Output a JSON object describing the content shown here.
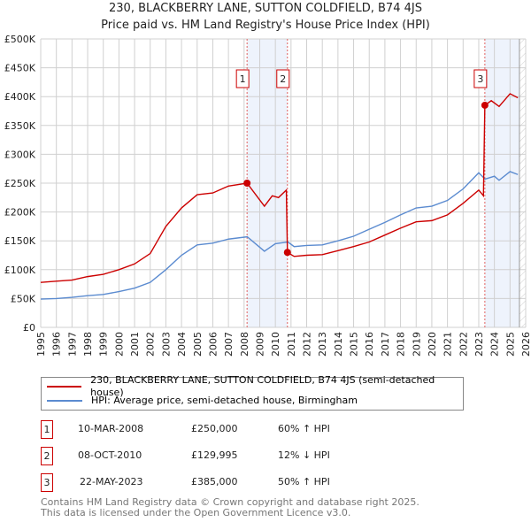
{
  "chart_data": {
    "type": "line",
    "title": "230, BLACKBERRY LANE, SUTTON COLDFIELD, B74 4JS",
    "subtitle": "Price paid vs. HM Land Registry's House Price Index (HPI)",
    "xlim": [
      1995,
      2026
    ],
    "ylim": [
      0,
      500000
    ],
    "x_ticks": [
      "1995",
      "1996",
      "1997",
      "1998",
      "1999",
      "2000",
      "2001",
      "2002",
      "2003",
      "2004",
      "2005",
      "2006",
      "2007",
      "2008",
      "2009",
      "2010",
      "2011",
      "2012",
      "2013",
      "2014",
      "2015",
      "2016",
      "2017",
      "2018",
      "2019",
      "2020",
      "2021",
      "2022",
      "2023",
      "2024",
      "2025",
      "2026"
    ],
    "y_ticks": [
      {
        "v": 0,
        "label": "£0"
      },
      {
        "v": 50000,
        "label": "£50K"
      },
      {
        "v": 100000,
        "label": "£100K"
      },
      {
        "v": 150000,
        "label": "£150K"
      },
      {
        "v": 200000,
        "label": "£200K"
      },
      {
        "v": 250000,
        "label": "£250K"
      },
      {
        "v": 300000,
        "label": "£300K"
      },
      {
        "v": 350000,
        "label": "£350K"
      },
      {
        "v": 400000,
        "label": "£400K"
      },
      {
        "v": 450000,
        "label": "£450K"
      },
      {
        "v": 500000,
        "label": "£500K"
      }
    ],
    "grid": true,
    "series": [
      {
        "name": "230, BLACKBERRY LANE, SUTTON COLDFIELD, B74 4JS (semi-detached house)",
        "color": "#cc0000",
        "x": [
          1995,
          1996,
          1997,
          1998,
          1999,
          2000,
          2001,
          2002,
          2003,
          2004,
          2005,
          2006,
          2007,
          2008.19,
          2009.3,
          2009.8,
          2010.2,
          2010.7,
          2010.77,
          2011.2,
          2012,
          2013,
          2014,
          2015,
          2016,
          2017,
          2018,
          2019,
          2020,
          2021,
          2022,
          2023,
          2023.3,
          2023.39,
          2023.8,
          2024.3,
          2025,
          2025.5
        ],
        "y": [
          78000,
          80000,
          82000,
          88000,
          92000,
          100000,
          110000,
          128000,
          175000,
          207000,
          230000,
          233000,
          245000,
          250000,
          210000,
          228000,
          225000,
          238000,
          129995,
          123000,
          125000,
          126000,
          133000,
          140000,
          148000,
          160000,
          172000,
          183000,
          185000,
          195000,
          215000,
          238000,
          228000,
          385000,
          393000,
          383000,
          405000,
          398000
        ]
      },
      {
        "name": "HPI: Average price, semi-detached house, Birmingham",
        "color": "#5b8bd0",
        "x": [
          1995,
          1996,
          1997,
          1998,
          1999,
          2000,
          2001,
          2002,
          2003,
          2004,
          2005,
          2006,
          2007,
          2008.2,
          2009.3,
          2010,
          2010.8,
          2011.2,
          2012,
          2013,
          2014,
          2015,
          2016,
          2017,
          2018,
          2019,
          2020,
          2021,
          2022,
          2023,
          2023.4,
          2024,
          2024.3,
          2025,
          2025.5
        ],
        "y": [
          49000,
          50000,
          52000,
          55000,
          57000,
          62000,
          68000,
          78000,
          100000,
          125000,
          143000,
          146000,
          153000,
          157000,
          132000,
          145000,
          148000,
          140000,
          142000,
          143000,
          150000,
          158000,
          170000,
          182000,
          195000,
          207000,
          210000,
          220000,
          240000,
          268000,
          257000,
          262000,
          255000,
          270000,
          265000
        ]
      }
    ],
    "sales": [
      {
        "id": "1",
        "x": 2008.19,
        "date": "10-MAR-2008",
        "price": "£250,000",
        "value": 250000,
        "hpi": "60% ↑ HPI"
      },
      {
        "id": "2",
        "x": 2010.77,
        "date": "08-OCT-2010",
        "price": "£129,995",
        "value": 129995,
        "hpi": "12% ↓ HPI"
      },
      {
        "id": "3",
        "x": 2023.39,
        "date": "22-MAY-2023",
        "price": "£385,000",
        "value": 385000,
        "hpi": "50% ↑ HPI"
      }
    ],
    "shaded": [
      [
        2008.19,
        2010.77
      ],
      [
        2023.39,
        2025.6
      ]
    ],
    "legend_position": "bottom"
  },
  "footer": [
    "Contains HM Land Registry data © Crown copyright and database right 2025.",
    "This data is licensed under the Open Government Licence v3.0."
  ]
}
